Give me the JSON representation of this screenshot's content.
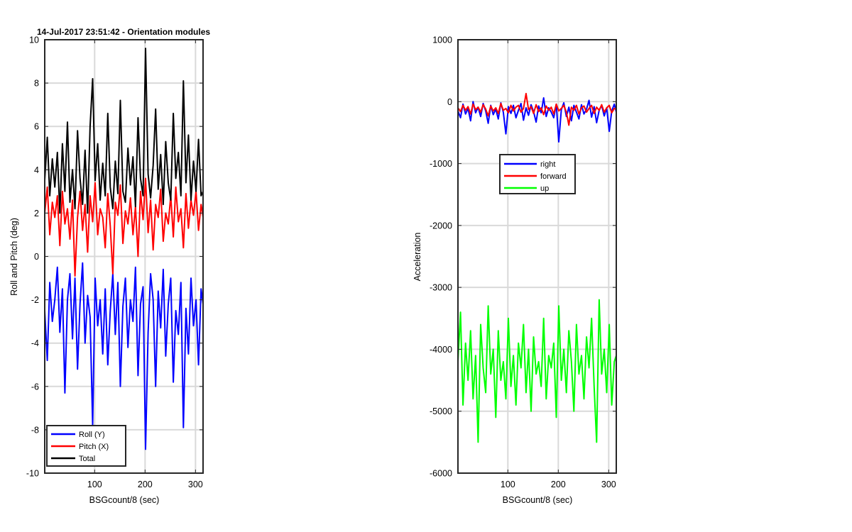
{
  "chart_data": [
    {
      "type": "line",
      "title": "14-Jul-2017 23:51:42 - Orientation modules",
      "xlabel": "BSGcount/8 (sec)",
      "ylabel": "Roll and Pitch (deg)",
      "xlim": [
        1,
        315
      ],
      "ylim": [
        -10,
        10
      ],
      "xticks": [
        100,
        200,
        300
      ],
      "yticks": [
        -10,
        -8,
        -6,
        -4,
        -2,
        0,
        2,
        4,
        6,
        8,
        10
      ],
      "grid": true,
      "legend_location": "bottom-left",
      "x": [
        1,
        6,
        11,
        16,
        21,
        26,
        31,
        36,
        41,
        46,
        51,
        56,
        61,
        66,
        71,
        76,
        81,
        86,
        91,
        96,
        101,
        106,
        111,
        116,
        121,
        126,
        131,
        136,
        141,
        146,
        151,
        156,
        161,
        166,
        171,
        176,
        181,
        186,
        191,
        196,
        201,
        206,
        211,
        216,
        221,
        226,
        231,
        236,
        241,
        246,
        251,
        256,
        261,
        266,
        271,
        276,
        281,
        286,
        291,
        296,
        301,
        306,
        311,
        315
      ],
      "series": [
        {
          "name": "Roll (Y)",
          "color": "#0000ff",
          "values": [
            -2.5,
            -4.8,
            -1.2,
            -3.0,
            -2.0,
            -0.5,
            -3.5,
            -1.5,
            -6.3,
            -2.0,
            -0.8,
            -3.8,
            -1.0,
            -5.2,
            -2.2,
            -0.3,
            -4.0,
            -1.8,
            -2.8,
            -7.8,
            -1.0,
            -3.2,
            -2.0,
            -4.5,
            -1.5,
            -5.0,
            -2.5,
            -0.8,
            -3.6,
            -1.2,
            -6.0,
            -2.3,
            -1.0,
            -4.2,
            -2.0,
            -3.0,
            -0.5,
            -5.5,
            -2.2,
            -1.4,
            -8.9,
            -3.5,
            -0.8,
            -2.0,
            -6.0,
            -1.6,
            -3.3,
            -0.6,
            -4.6,
            -2.2,
            -1.0,
            -5.8,
            -2.5,
            -3.6,
            -1.2,
            -7.9,
            -2.4,
            -4.5,
            -1.0,
            -3.2,
            -2.0,
            -5.0,
            -1.5,
            -2.2
          ]
        },
        {
          "name": "Pitch (X)",
          "color": "#ff0000",
          "values": [
            2.0,
            3.2,
            1.0,
            2.5,
            1.8,
            2.8,
            0.5,
            3.0,
            1.5,
            2.2,
            0.8,
            2.6,
            -0.9,
            1.8,
            3.0,
            1.2,
            2.4,
            0.2,
            2.8,
            1.6,
            3.4,
            1.0,
            2.2,
            1.8,
            0.4,
            2.9,
            1.4,
            -0.8,
            2.5,
            1.9,
            3.3,
            0.6,
            2.1,
            1.5,
            2.7,
            1.0,
            2.3,
            0.0,
            3.0,
            1.7,
            3.6,
            1.1,
            2.6,
            0.3,
            2.4,
            1.8,
            3.1,
            0.7,
            2.0,
            1.5,
            2.8,
            0.9,
            3.2,
            1.6,
            2.2,
            0.4,
            2.9,
            1.3,
            2.6,
            1.9,
            3.0,
            1.2,
            2.4,
            1.8
          ]
        },
        {
          "name": "Total",
          "color": "#000000",
          "values": [
            3.5,
            5.5,
            2.8,
            4.5,
            3.2,
            4.8,
            2.0,
            5.2,
            3.0,
            6.2,
            2.5,
            4.0,
            2.2,
            5.8,
            3.6,
            2.4,
            4.9,
            2.0,
            6.0,
            8.2,
            3.5,
            5.2,
            2.6,
            4.3,
            2.8,
            6.6,
            3.2,
            2.2,
            4.4,
            2.9,
            7.2,
            3.0,
            2.5,
            5.0,
            3.3,
            4.6,
            2.3,
            6.4,
            3.6,
            2.8,
            9.6,
            3.8,
            2.7,
            4.2,
            6.8,
            3.1,
            4.7,
            2.4,
            5.3,
            3.4,
            2.6,
            6.6,
            3.6,
            4.8,
            2.8,
            8.1,
            3.4,
            5.6,
            2.6,
            4.4,
            3.0,
            5.4,
            2.8,
            3.0
          ]
        }
      ]
    },
    {
      "type": "line",
      "title": "",
      "xlabel": "BSGcount/8 (sec)",
      "ylabel": "Acceleration",
      "xlim": [
        1,
        315
      ],
      "ylim": [
        -6000,
        1000
      ],
      "xticks": [
        100,
        200,
        300
      ],
      "yticks": [
        -6000,
        -5000,
        -4000,
        -3000,
        -2000,
        -1000,
        0,
        1000
      ],
      "grid": true,
      "legend_location": "upper-center",
      "x": [
        1,
        6,
        11,
        16,
        21,
        26,
        31,
        36,
        41,
        46,
        51,
        56,
        61,
        66,
        71,
        76,
        81,
        86,
        91,
        96,
        101,
        106,
        111,
        116,
        121,
        126,
        131,
        136,
        141,
        146,
        151,
        156,
        161,
        166,
        171,
        176,
        181,
        186,
        191,
        196,
        201,
        206,
        211,
        216,
        221,
        226,
        231,
        236,
        241,
        246,
        251,
        256,
        261,
        266,
        271,
        276,
        281,
        286,
        291,
        296,
        301,
        306,
        311,
        315
      ],
      "series": [
        {
          "name": "right",
          "color": "#0000ff",
          "values": [
            -150,
            -260,
            -40,
            -200,
            -110,
            -310,
            0,
            -180,
            -90,
            -240,
            -30,
            -150,
            -350,
            -60,
            -210,
            -120,
            -280,
            -20,
            -170,
            -520,
            -80,
            -190,
            -60,
            -260,
            -140,
            -30,
            -300,
            -100,
            -220,
            -50,
            -160,
            -330,
            -70,
            -180,
            60,
            -240,
            -100,
            -170,
            -260,
            -40,
            -650,
            -130,
            -20,
            -240,
            -90,
            -310,
            -60,
            -170,
            -280,
            -50,
            -200,
            -120,
            20,
            -250,
            -80,
            -340,
            -140,
            -60,
            -230,
            -100,
            -480,
            -150,
            -40,
            -170
          ]
        },
        {
          "name": "forward",
          "color": "#ff0000",
          "values": [
            -100,
            -160,
            -60,
            -140,
            -80,
            -200,
            -40,
            -130,
            -90,
            -170,
            -50,
            -120,
            -230,
            -70,
            -150,
            -100,
            -190,
            -30,
            -140,
            -110,
            -180,
            -60,
            -150,
            -90,
            -60,
            -170,
            -110,
            130,
            -130,
            -80,
            -190,
            -50,
            -160,
            -100,
            -210,
            -70,
            -140,
            -90,
            -200,
            -40,
            -150,
            -110,
            -60,
            -170,
            -380,
            -90,
            -140,
            -60,
            -200,
            -100,
            -70,
            -170,
            -110,
            -60,
            -190,
            -90,
            -140,
            -50,
            -170,
            -100,
            -60,
            -180,
            -110,
            -120
          ]
        },
        {
          "name": "up",
          "color": "#00ff00",
          "values": [
            -4200,
            -3400,
            -4900,
            -3900,
            -4500,
            -3700,
            -4800,
            -4100,
            -5500,
            -3600,
            -4300,
            -4700,
            -3300,
            -4400,
            -4000,
            -5100,
            -3700,
            -4500,
            -4200,
            -4800,
            -3500,
            -4600,
            -4100,
            -4900,
            -3900,
            -4300,
            -3600,
            -4700,
            -4000,
            -5000,
            -3800,
            -4400,
            -4200,
            -4600,
            -3500,
            -4800,
            -4100,
            -4300,
            -3900,
            -5100,
            -3300,
            -4500,
            -4000,
            -4700,
            -3700,
            -4200,
            -5000,
            -3600,
            -4400,
            -4100,
            -4800,
            -3800,
            -4300,
            -3500,
            -4600,
            -5500,
            -3200,
            -4400,
            -4000,
            -4700,
            -3600,
            -4900,
            -4200,
            -4100
          ]
        }
      ]
    }
  ]
}
